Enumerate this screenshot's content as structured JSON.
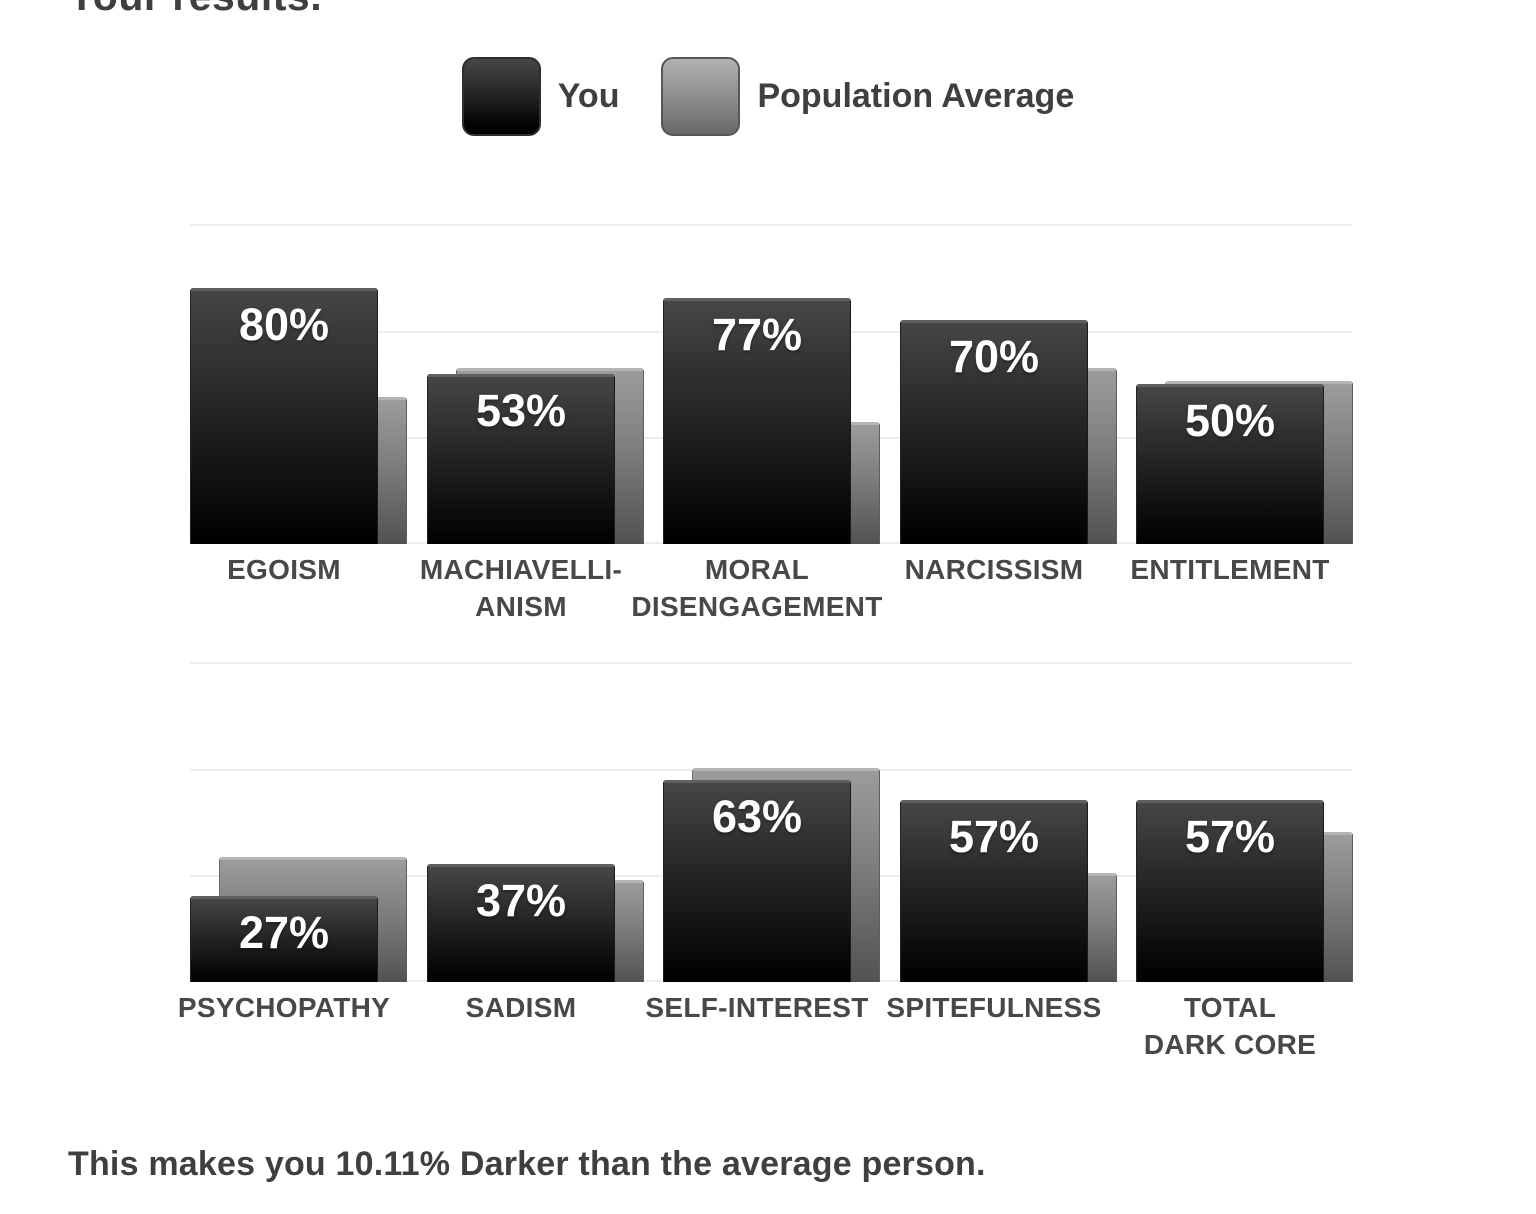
{
  "title": "Your results.",
  "legend": {
    "items": [
      {
        "label": "You",
        "swatch": "you-swatch"
      },
      {
        "label": "Population Average",
        "swatch": "population-average-swatch"
      }
    ]
  },
  "footer": "This makes you 10.11% Darker than the average person.",
  "colors": {
    "you_bar_top": "#464646",
    "you_bar_bottom": "#000000",
    "avg_bar_top": "#9c9c9c",
    "avg_bar_bottom": "#525252",
    "gridline": "#ededed",
    "axis_label": "#484848",
    "value_label": "#ffffff",
    "body_text": "#3f3f3f",
    "background": "#ffffff"
  },
  "chart_data": [
    {
      "type": "bar",
      "row": "top",
      "title": "",
      "xlabel": "",
      "ylabel": "",
      "ylim": [
        0,
        100
      ],
      "grid": "horizontal lines at 0%, 33%, 67%, 100%",
      "legend_position": "top-center (shared)",
      "categories": [
        "EGOISM",
        "MACHIAVELLI-ANISM",
        "MORAL DISENGAGEMENT",
        "NARCISSISM",
        "ENTITLEMENT"
      ],
      "category_lines": [
        [
          "EGOISM"
        ],
        [
          "MACHIAVELLI-",
          "ANISM"
        ],
        [
          "MORAL",
          "DISENGAGEMENT"
        ],
        [
          "NARCISSISM"
        ],
        [
          "ENTITLEMENT"
        ]
      ],
      "series": [
        {
          "name": "You",
          "values": [
            80,
            53,
            77,
            70,
            50
          ],
          "value_labels": [
            "80%",
            "53%",
            "77%",
            "70%",
            "50%"
          ]
        },
        {
          "name": "Population Average",
          "values": [
            46,
            55,
            38,
            55,
            51
          ],
          "value_labels": [
            "",
            "",
            "",
            "",
            ""
          ]
        }
      ]
    },
    {
      "type": "bar",
      "row": "bottom",
      "title": "",
      "xlabel": "",
      "ylabel": "",
      "ylim": [
        0,
        100
      ],
      "grid": "horizontal lines at 0%, 33%, 67%, 100%",
      "legend_position": "top-center (shared)",
      "categories": [
        "PSYCHOPATHY",
        "SADISM",
        "SELF-INTEREST",
        "SPITEFULNESS",
        "TOTAL DARK CORE"
      ],
      "category_lines": [
        [
          "PSYCHOPATHY"
        ],
        [
          "SADISM"
        ],
        [
          "SELF-INTEREST"
        ],
        [
          "SPITEFULNESS"
        ],
        [
          "TOTAL",
          "DARK CORE"
        ]
      ],
      "series": [
        {
          "name": "You",
          "values": [
            27,
            37,
            63,
            57,
            57
          ],
          "value_labels": [
            "27%",
            "37%",
            "63%",
            "57%",
            "57%"
          ]
        },
        {
          "name": "Population Average",
          "values": [
            39,
            32,
            67,
            34,
            47
          ],
          "value_labels": [
            "",
            "",
            "",
            "",
            ""
          ]
        }
      ]
    }
  ]
}
